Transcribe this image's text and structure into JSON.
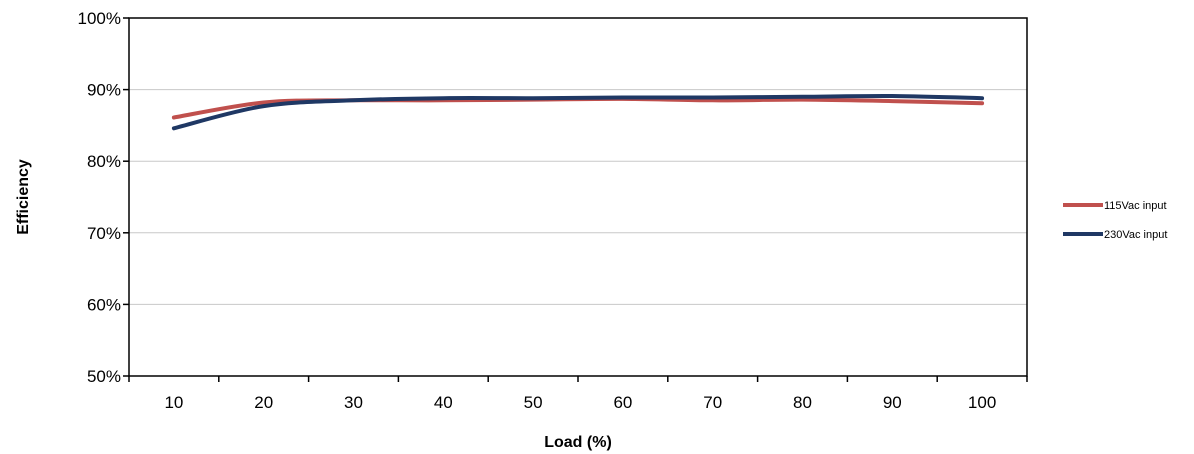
{
  "chart_data": {
    "type": "line",
    "title": "",
    "xlabel": "Load (%)",
    "ylabel": "Efficiency",
    "x": [
      10,
      20,
      30,
      40,
      50,
      60,
      70,
      80,
      90,
      100
    ],
    "x_tick_labels": [
      "10",
      "20",
      "30",
      "40",
      "50",
      "60",
      "70",
      "80",
      "90",
      "100"
    ],
    "y_tick_labels": [
      "50%",
      "60%",
      "70%",
      "80%",
      "90%",
      "100%"
    ],
    "y_ticks": [
      50,
      60,
      70,
      80,
      90,
      100
    ],
    "ylim": [
      50,
      100
    ],
    "grid": true,
    "legend_position": "right",
    "series": [
      {
        "name": "115Vac input",
        "color": "#c0504d",
        "values": [
          86.1,
          88.2,
          88.5,
          88.5,
          88.6,
          88.7,
          88.5,
          88.6,
          88.4,
          88.1
        ]
      },
      {
        "name": "230Vac input",
        "color": "#1f3864",
        "values": [
          84.6,
          87.7,
          88.5,
          88.8,
          88.8,
          88.9,
          88.9,
          89.0,
          89.1,
          88.8
        ]
      }
    ]
  }
}
